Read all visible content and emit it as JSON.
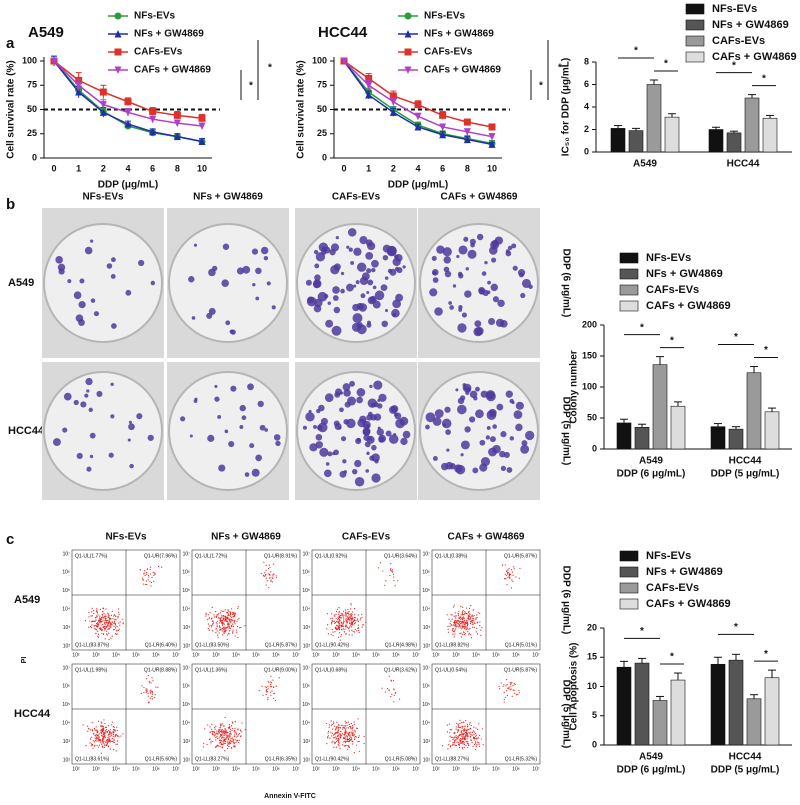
{
  "panel_labels": [
    "a",
    "b",
    "c"
  ],
  "chart_data": [
    {
      "type": "line",
      "title": "A549",
      "x_label": "DDP (μg/mL)",
      "y_label": "Cell survival rate (%)",
      "categories": [
        "0",
        "1",
        "2",
        "4",
        "6",
        "8",
        "10"
      ],
      "ylim": [
        0,
        100
      ],
      "yticks": [
        0,
        25,
        50,
        75,
        100
      ],
      "reference_line": 50,
      "significance_labels": [
        "*",
        "*"
      ],
      "series": [
        {
          "name": "NFs-EVs",
          "color": "#2a9d3a",
          "marker": "circle",
          "values": [
            100,
            70,
            48,
            33,
            26,
            22,
            17
          ],
          "errors": [
            5,
            4,
            3,
            3,
            3,
            3,
            3
          ]
        },
        {
          "name": "NFs + GW4869",
          "color": "#1f2fa8",
          "marker": "triangle",
          "values": [
            100,
            68,
            47,
            35,
            27,
            22,
            17
          ],
          "errors": [
            5,
            6,
            5,
            3,
            3,
            3,
            3
          ]
        },
        {
          "name": "CAFs-EVs",
          "color": "#e0302a",
          "marker": "square",
          "values": [
            100,
            80,
            68,
            58,
            48,
            44,
            41
          ],
          "errors": [
            2,
            8,
            7,
            4,
            4,
            4,
            4
          ]
        },
        {
          "name": "CAFs + GW4869",
          "color": "#b040c8",
          "marker": "triangle-down",
          "values": [
            100,
            75,
            55,
            47,
            40,
            36,
            33
          ],
          "errors": [
            2,
            6,
            5,
            4,
            3,
            3,
            3
          ]
        }
      ]
    },
    {
      "type": "line",
      "title": "HCC44",
      "x_label": "DDP (μg/mL)",
      "y_label": "Cell survival rate (%)",
      "categories": [
        "0",
        "1",
        "2",
        "4",
        "6",
        "8",
        "10"
      ],
      "ylim": [
        0,
        100
      ],
      "yticks": [
        0,
        25,
        50,
        75,
        100
      ],
      "reference_line": 50,
      "significance_labels": [
        "*",
        "*"
      ],
      "series": [
        {
          "name": "NFs-EVs",
          "color": "#2a9d3a",
          "marker": "circle",
          "values": [
            100,
            68,
            50,
            34,
            25,
            20,
            15
          ],
          "errors": [
            2,
            4,
            3,
            3,
            3,
            3,
            3
          ]
        },
        {
          "name": "NFs + GW4869",
          "color": "#1f2fa8",
          "marker": "triangle",
          "values": [
            100,
            65,
            47,
            32,
            24,
            19,
            14
          ],
          "errors": [
            2,
            4,
            4,
            3,
            3,
            3,
            2
          ]
        },
        {
          "name": "CAFs-EVs",
          "color": "#e0302a",
          "marker": "square",
          "values": [
            100,
            82,
            64,
            55,
            44,
            37,
            32
          ],
          "errors": [
            2,
            5,
            5,
            4,
            4,
            3,
            3
          ]
        },
        {
          "name": "CAFs + GW4869",
          "color": "#b040c8",
          "marker": "triangle-down",
          "values": [
            100,
            75,
            58,
            43,
            32,
            27,
            22
          ],
          "errors": [
            2,
            5,
            4,
            3,
            3,
            3,
            3
          ]
        }
      ]
    },
    {
      "type": "bar",
      "y_label": "IC₅₀ for DDP (μg/mL)",
      "categories": [
        "A549",
        "HCC44"
      ],
      "ylim": [
        0,
        8
      ],
      "yticks": [
        0,
        2,
        4,
        6,
        8
      ],
      "significance_labels": [
        [
          "*",
          "*"
        ],
        [
          "*",
          "*"
        ]
      ],
      "series": [
        {
          "name": "NFs-EVs",
          "color": "#111111",
          "values": [
            2.1,
            2.0
          ],
          "errors": [
            0.25,
            0.2
          ]
        },
        {
          "name": "NFs + GW4869",
          "color": "#555555",
          "values": [
            1.9,
            1.7
          ],
          "errors": [
            0.2,
            0.15
          ]
        },
        {
          "name": "CAFs-EVs",
          "color": "#9a9a9a",
          "values": [
            6.0,
            4.8
          ],
          "errors": [
            0.4,
            0.3
          ]
        },
        {
          "name": "CAFs + GW4869",
          "color": "#dddddd",
          "values": [
            3.1,
            3.0
          ],
          "errors": [
            0.3,
            0.25
          ]
        }
      ]
    },
    {
      "type": "bar",
      "y_label": "Colony number",
      "categories": [
        "A549",
        "HCC44"
      ],
      "category_notes": [
        "DDP (6 μg/mL)",
        "DDP (5 μg/mL)"
      ],
      "ylim": [
        0,
        200
      ],
      "yticks": [
        0,
        50,
        100,
        150,
        200
      ],
      "significance_labels": [
        [
          "*",
          "*"
        ],
        [
          "*",
          "*"
        ]
      ],
      "series": [
        {
          "name": "NFs-EVs",
          "color": "#111111",
          "values": [
            42,
            36
          ],
          "errors": [
            6,
            5
          ]
        },
        {
          "name": "NFs + GW4869",
          "color": "#555555",
          "values": [
            35,
            32
          ],
          "errors": [
            5,
            4
          ]
        },
        {
          "name": "CAFs-EVs",
          "color": "#9a9a9a",
          "values": [
            136,
            123
          ],
          "errors": [
            13,
            10
          ]
        },
        {
          "name": "CAFs + GW4869",
          "color": "#dddddd",
          "values": [
            69,
            60
          ],
          "errors": [
            7,
            6
          ]
        }
      ]
    },
    {
      "type": "bar",
      "y_label": "Cell Apoptosis (%)",
      "categories": [
        "A549",
        "HCC44"
      ],
      "category_notes": [
        "DDP (6 μg/mL)",
        "DDP (5 μg/mL)"
      ],
      "ylim": [
        0,
        20
      ],
      "yticks": [
        0,
        5,
        10,
        15,
        20
      ],
      "significance_labels": [
        [
          "*",
          "*"
        ],
        [
          "*",
          "*"
        ]
      ],
      "series": [
        {
          "name": "NFs-EVs",
          "color": "#111111",
          "values": [
            13.3,
            13.8
          ],
          "errors": [
            1.0,
            1.2
          ]
        },
        {
          "name": "NFs + GW4869",
          "color": "#555555",
          "values": [
            14.0,
            14.5
          ],
          "errors": [
            0.8,
            1.0
          ]
        },
        {
          "name": "CAFs-EVs",
          "color": "#9a9a9a",
          "values": [
            7.6,
            7.9
          ],
          "errors": [
            0.7,
            0.7
          ]
        },
        {
          "name": "CAFs + GW4869",
          "color": "#dddddd",
          "values": [
            11.1,
            11.5
          ],
          "errors": [
            1.2,
            1.3
          ]
        }
      ]
    }
  ],
  "colony_assay": {
    "columns": [
      "NFs-EVs",
      "NFs + GW4869",
      "CAFs-EVs",
      "CAFs + GW4869"
    ],
    "rows": [
      "A549",
      "HCC44"
    ],
    "row_notes": [
      "DDP (6 μg/mL)",
      "DDP (5 μg/mL)"
    ]
  },
  "flow_cytometry": {
    "columns": [
      "NFs-EVs",
      "NFs + GW4869",
      "CAFs-EVs",
      "CAFs + GW4869"
    ],
    "rows": [
      "A549",
      "HCC44"
    ],
    "row_notes": [
      "DDP (6 μg/mL)",
      "DDP (5 μg/mL)"
    ],
    "x_label": "Annexin V-FITC",
    "y_label": "PI",
    "axis_ticks": [
      "10²",
      "10³",
      "10⁴",
      "10⁵",
      "10⁶",
      "10⁷"
    ],
    "quadrants": [
      [
        {
          "ul": "Q1-UL(1.77%)",
          "ur": "Q1-UR(7.96%)",
          "ll": "Q1-LL(83.87%)",
          "lr": "Q1-LR(6.40%)"
        },
        {
          "ul": "Q1-UL(1.72%)",
          "ur": "Q1-UR(8.91%)",
          "ll": "Q1-LL(83.50%)",
          "lr": "Q1-LR(5.87%)"
        },
        {
          "ul": "Q1-UL(0.92%)",
          "ur": "Q1-UR(3.64%)",
          "ll": "Q1-LL(90.42%)",
          "lr": "Q1-LR(4.98%)"
        },
        {
          "ul": "Q1-UL(0.38%)",
          "ur": "Q1-UR(5.87%)",
          "ll": "Q1-LL(88.82%)",
          "lr": "Q1-LR(5.01%)"
        }
      ],
      [
        {
          "ul": "Q1-UL(1.98%)",
          "ur": "Q1-UR(8.88%)",
          "ll": "Q1-LL(83.61%)",
          "lr": "Q1-LR(5.60%)"
        },
        {
          "ul": "Q1-UL(1.36%)",
          "ur": "Q1-UR(9.00%)",
          "ll": "Q1-LL(83.27%)",
          "lr": "Q1-LR(6.35%)"
        },
        {
          "ul": "Q1-UL(0.68%)",
          "ur": "Q1-UR(3.62%)",
          "ll": "Q1-LL(90.42%)",
          "lr": "Q1-LR(5.08%)"
        },
        {
          "ul": "Q1-UL(0.54%)",
          "ur": "Q1-UR(5.87%)",
          "ll": "Q1-LL(88.27%)",
          "lr": "Q1-LR(5.32%)"
        }
      ]
    ]
  }
}
